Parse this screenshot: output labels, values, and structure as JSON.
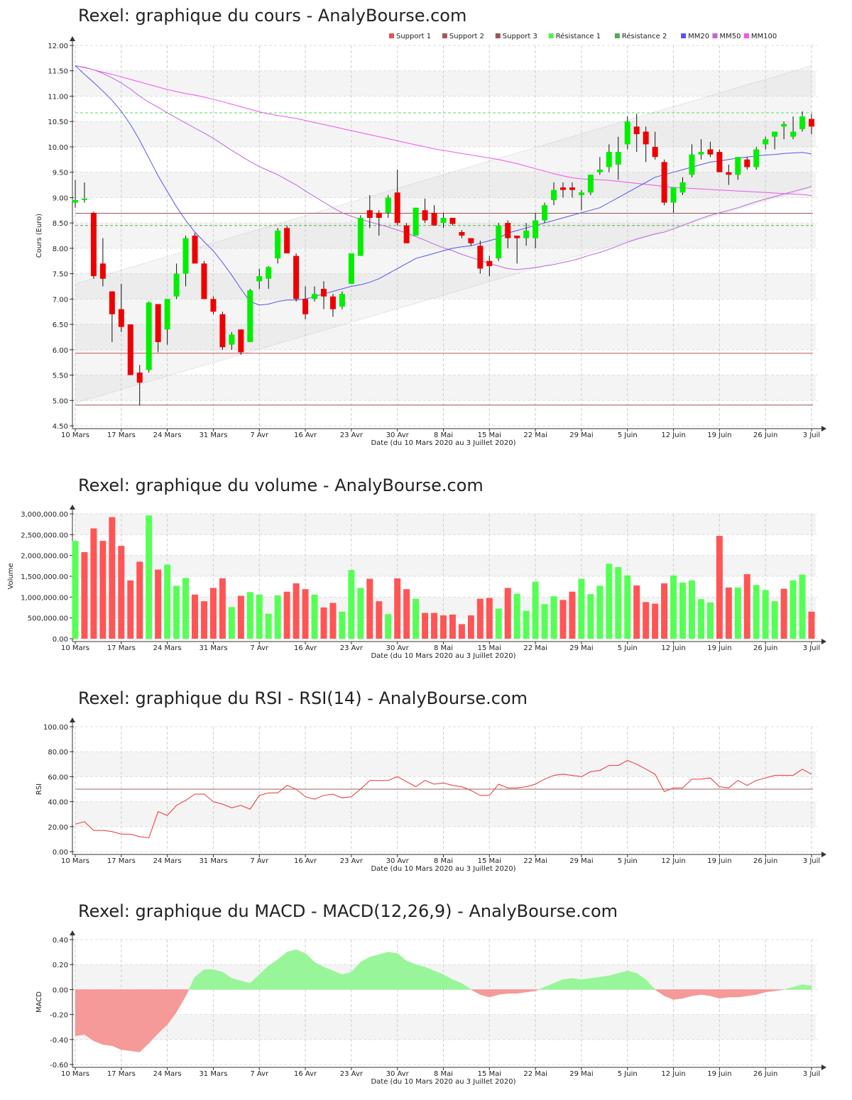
{
  "titles": {
    "price": "Rexel: graphique du cours - AnalyBourse.com",
    "volume": "Rexel: graphique du volume - AnalyBourse.com",
    "rsi": "Rexel: graphique du RSI - RSI(14) - AnalyBourse.com",
    "macd": "Rexel: graphique du MACD - MACD(12,26,9) - AnalyBourse.com"
  },
  "xlabel": "Date (du 10 Mars 2020 au 3 Juillet 2020)",
  "ylabels": {
    "price": "Cours (Euro)",
    "volume": "Volume",
    "rsi": "RSI",
    "macd": "MACD"
  },
  "x_ticks": [
    {
      "label": "10 Mars",
      "i": 0
    },
    {
      "label": "17 Mars",
      "i": 5
    },
    {
      "label": "24 Mars",
      "i": 10
    },
    {
      "label": "31 Mars",
      "i": 15
    },
    {
      "label": "7 Avr",
      "i": 20
    },
    {
      "label": "16 Avr",
      "i": 25
    },
    {
      "label": "23 Avr",
      "i": 30
    },
    {
      "label": "30 Avr",
      "i": 35
    },
    {
      "label": "8 Mai",
      "i": 40
    },
    {
      "label": "15 Mai",
      "i": 45
    },
    {
      "label": "22 Mai",
      "i": 50
    },
    {
      "label": "29 Mai",
      "i": 55
    },
    {
      "label": "5 Juin",
      "i": 60
    },
    {
      "label": "12 Juin",
      "i": 65
    },
    {
      "label": "19 Juin",
      "i": 70
    },
    {
      "label": "26 Juin",
      "i": 75
    },
    {
      "label": "3 Juil",
      "i": 80
    }
  ],
  "colors": {
    "up": "#00ee00",
    "down": "#ee0000",
    "vol_up": "#55ff55",
    "vol_down": "#ff5555",
    "support1": "#cc5555",
    "support2": "#995555",
    "support3": "#995555",
    "resistance1": "#55dd55",
    "resistance2": "#55aa55",
    "mm20": "#5555ee",
    "mm50": "#bb66dd",
    "mm100": "#ee55ee",
    "rsi": "#ee3333",
    "macd_pos": "#99f599",
    "macd_neg": "#f59999"
  },
  "legend": [
    {
      "name": "Support 1",
      "color": "#dd5555"
    },
    {
      "name": "Support 2",
      "color": "#aa5555"
    },
    {
      "name": "Support 3",
      "color": "#995555"
    },
    {
      "name": "Résistance 1",
      "color": "#55ee55"
    },
    {
      "name": "Résistance 2",
      "color": "#55aa55"
    },
    {
      "name": "MM20",
      "color": "#5555ee"
    },
    {
      "name": "MM50",
      "color": "#bb66dd"
    },
    {
      "name": "MM100",
      "color": "#ee55ee"
    }
  ],
  "chart_data": [
    {
      "type": "candlestick",
      "title": "Rexel: graphique du cours - AnalyBourse.com",
      "xlabel": "Date (du 10 Mars 2020 au 3 Juillet 2020)",
      "ylabel": "Cours (Euro)",
      "ylim": [
        4.5,
        12.0
      ],
      "y_ticks": [
        4.5,
        5.0,
        5.5,
        6.0,
        6.5,
        7.0,
        7.5,
        8.0,
        8.5,
        9.0,
        9.5,
        10.0,
        10.5,
        11.0,
        11.5,
        12.0
      ],
      "grid": true,
      "legend_position": "top-right",
      "levels": {
        "support1": 5.93,
        "support2": 8.69,
        "support3": 4.91,
        "resistance1": 10.67,
        "resistance2": 8.45
      },
      "channel": {
        "upper": [
          7.3,
          11.6
        ],
        "lower": [
          4.95,
          9.2
        ]
      },
      "ohlc": [
        [
          8.9,
          9.35,
          8.8,
          8.95
        ],
        [
          8.95,
          9.3,
          8.9,
          8.98
        ],
        [
          8.7,
          8.72,
          7.4,
          7.45
        ],
        [
          7.7,
          8.2,
          7.25,
          7.4
        ],
        [
          7.15,
          7.15,
          6.15,
          6.7
        ],
        [
          6.8,
          7.3,
          6.35,
          6.45
        ],
        [
          6.5,
          6.5,
          5.5,
          5.5
        ],
        [
          5.55,
          5.7,
          4.9,
          5.35
        ],
        [
          5.6,
          6.95,
          5.55,
          6.93
        ],
        [
          6.9,
          6.9,
          5.95,
          6.15
        ],
        [
          6.4,
          7.0,
          6.1,
          7.0
        ],
        [
          7.05,
          7.7,
          7.0,
          7.5
        ],
        [
          7.5,
          8.25,
          7.25,
          8.2
        ],
        [
          8.25,
          8.3,
          7.7,
          7.7
        ],
        [
          7.7,
          7.75,
          7.0,
          7.0
        ],
        [
          7.0,
          7.05,
          6.7,
          6.75
        ],
        [
          6.7,
          6.75,
          6.0,
          6.05
        ],
        [
          6.1,
          6.35,
          6.0,
          6.3
        ],
        [
          6.4,
          6.4,
          5.9,
          5.95
        ],
        [
          6.15,
          7.2,
          6.15,
          7.17
        ],
        [
          7.35,
          7.6,
          7.2,
          7.45
        ],
        [
          7.4,
          7.65,
          7.2,
          7.63
        ],
        [
          7.8,
          8.4,
          7.7,
          8.35
        ],
        [
          8.4,
          8.45,
          7.9,
          7.9
        ],
        [
          7.85,
          7.9,
          6.95,
          7.0
        ],
        [
          7.0,
          7.25,
          6.6,
          6.7
        ],
        [
          7.0,
          7.25,
          6.95,
          7.1
        ],
        [
          7.2,
          7.35,
          6.8,
          7.05
        ],
        [
          7.05,
          7.1,
          6.65,
          6.8
        ],
        [
          6.85,
          7.15,
          6.8,
          7.1
        ],
        [
          7.3,
          7.9,
          7.3,
          7.9
        ],
        [
          7.85,
          8.65,
          7.85,
          8.6
        ],
        [
          8.75,
          9.05,
          8.4,
          8.6
        ],
        [
          8.7,
          8.75,
          8.25,
          8.6
        ],
        [
          8.7,
          9.05,
          8.6,
          9.0
        ],
        [
          9.1,
          9.55,
          8.45,
          8.5
        ],
        [
          8.45,
          8.5,
          8.1,
          8.1
        ],
        [
          8.25,
          8.8,
          8.25,
          8.8
        ],
        [
          8.75,
          8.98,
          8.5,
          8.55
        ],
        [
          8.7,
          8.85,
          8.45,
          8.45
        ],
        [
          8.5,
          8.7,
          8.4,
          8.6
        ],
        [
          8.6,
          8.6,
          8.45,
          8.48
        ],
        [
          8.32,
          8.36,
          8.2,
          8.25
        ],
        [
          8.2,
          8.2,
          8.05,
          8.1
        ],
        [
          8.05,
          8.15,
          7.5,
          7.6
        ],
        [
          7.75,
          7.85,
          7.45,
          7.65
        ],
        [
          7.8,
          8.5,
          7.75,
          8.45
        ],
        [
          8.5,
          8.55,
          8.0,
          8.2
        ],
        [
          8.25,
          8.25,
          7.7,
          8.2
        ],
        [
          8.2,
          8.5,
          8.05,
          8.35
        ],
        [
          8.2,
          8.7,
          8.0,
          8.55
        ],
        [
          8.55,
          8.9,
          8.5,
          8.85
        ],
        [
          8.95,
          9.3,
          8.85,
          9.15
        ],
        [
          9.2,
          9.3,
          9.0,
          9.15
        ],
        [
          9.2,
          9.3,
          9.0,
          9.15
        ],
        [
          9.05,
          9.15,
          8.75,
          9.1
        ],
        [
          9.1,
          9.45,
          9.05,
          9.45
        ],
        [
          9.5,
          9.8,
          9.45,
          9.55
        ],
        [
          9.6,
          10.05,
          9.5,
          9.9
        ],
        [
          9.65,
          10.2,
          9.35,
          9.9
        ],
        [
          10.05,
          10.6,
          9.95,
          10.5
        ],
        [
          10.4,
          10.65,
          9.9,
          10.25
        ],
        [
          10.3,
          10.4,
          9.7,
          10.05
        ],
        [
          10.0,
          10.3,
          9.75,
          9.8
        ],
        [
          9.7,
          9.75,
          8.85,
          8.9
        ],
        [
          8.9,
          9.2,
          8.7,
          9.2
        ],
        [
          9.1,
          9.4,
          9.05,
          9.3
        ],
        [
          9.45,
          10.05,
          9.4,
          9.85
        ],
        [
          9.85,
          10.15,
          9.75,
          9.9
        ],
        [
          9.95,
          10.1,
          9.8,
          9.85
        ],
        [
          9.9,
          9.95,
          9.55,
          9.5
        ],
        [
          9.5,
          9.65,
          9.25,
          9.45
        ],
        [
          9.45,
          9.8,
          9.35,
          9.8
        ],
        [
          9.75,
          9.8,
          9.55,
          9.6
        ],
        [
          9.6,
          10.0,
          9.55,
          9.95
        ],
        [
          10.05,
          10.2,
          9.95,
          10.15
        ],
        [
          10.2,
          10.3,
          9.95,
          10.3
        ],
        [
          10.4,
          10.5,
          10.15,
          10.45
        ],
        [
          10.2,
          10.6,
          10.15,
          10.3
        ],
        [
          10.35,
          10.7,
          10.3,
          10.6
        ],
        [
          10.55,
          10.65,
          10.25,
          10.4
        ]
      ],
      "mm20": [
        11.6,
        11.43,
        11.27,
        11.1,
        10.92,
        10.7,
        10.44,
        10.13,
        9.78,
        9.43,
        9.12,
        8.82,
        8.55,
        8.32,
        8.13,
        7.95,
        7.72,
        7.47,
        7.2,
        6.95,
        6.88,
        6.9,
        6.95,
        6.98,
        6.98,
        7.0,
        7.05,
        7.1,
        7.15,
        7.2,
        7.25,
        7.28,
        7.33,
        7.4,
        7.5,
        7.6,
        7.7,
        7.8,
        7.85,
        7.9,
        7.95,
        8.0,
        8.03,
        8.05,
        8.1,
        8.15,
        8.2,
        8.3,
        8.35,
        8.4,
        8.45,
        8.5,
        8.55,
        8.6,
        8.65,
        8.7,
        8.75,
        8.8,
        8.9,
        9.0,
        9.1,
        9.2,
        9.3,
        9.4,
        9.45,
        9.5,
        9.55,
        9.6,
        9.65,
        9.7,
        9.72,
        9.75,
        9.78,
        9.8,
        9.82,
        9.84,
        9.85,
        9.87,
        9.88,
        9.89,
        9.86
      ],
      "mm50": [
        11.6,
        11.57,
        11.52,
        11.45,
        11.36,
        11.26,
        11.14,
        11.0,
        10.88,
        10.78,
        10.67,
        10.57,
        10.47,
        10.37,
        10.27,
        10.17,
        10.05,
        9.93,
        9.82,
        9.71,
        9.61,
        9.53,
        9.45,
        9.35,
        9.25,
        9.13,
        9.02,
        8.91,
        8.8,
        8.7,
        8.63,
        8.57,
        8.52,
        8.47,
        8.42,
        8.36,
        8.3,
        8.23,
        8.16,
        8.08,
        8.01,
        7.95,
        7.88,
        7.82,
        7.76,
        7.7,
        7.65,
        7.6,
        7.58,
        7.6,
        7.62,
        7.65,
        7.68,
        7.72,
        7.76,
        7.81,
        7.87,
        7.92,
        7.98,
        8.05,
        8.12,
        8.18,
        8.23,
        8.28,
        8.32,
        8.38,
        8.45,
        8.52,
        8.59,
        8.65,
        8.7,
        8.75,
        8.8,
        8.86,
        8.92,
        8.97,
        9.02,
        9.07,
        9.12,
        9.17,
        9.22
      ],
      "mm100": [
        11.6,
        11.56,
        11.52,
        11.47,
        11.43,
        11.38,
        11.33,
        11.28,
        11.23,
        11.18,
        11.13,
        11.09,
        11.05,
        11.02,
        10.98,
        10.94,
        10.89,
        10.84,
        10.79,
        10.74,
        10.69,
        10.65,
        10.62,
        10.59,
        10.56,
        10.52,
        10.48,
        10.44,
        10.4,
        10.36,
        10.32,
        10.28,
        10.24,
        10.2,
        10.16,
        10.12,
        10.08,
        10.04,
        10.0,
        9.96,
        9.93,
        9.9,
        9.87,
        9.84,
        9.81,
        9.78,
        9.75,
        9.71,
        9.67,
        9.62,
        9.57,
        9.52,
        9.47,
        9.43,
        9.39,
        9.37,
        9.36,
        9.35,
        9.34,
        9.32,
        9.3,
        9.28,
        9.26,
        9.24,
        9.22,
        9.2,
        9.19,
        9.18,
        9.17,
        9.16,
        9.15,
        9.14,
        9.13,
        9.12,
        9.11,
        9.1,
        9.09,
        9.08,
        9.07,
        9.06,
        9.04
      ]
    },
    {
      "type": "bar",
      "title": "Rexel: graphique du volume - AnalyBourse.com",
      "xlabel": "Date (du 10 Mars 2020 au 3 Juillet 2020)",
      "ylabel": "Volume",
      "ylim": [
        0,
        3000000
      ],
      "y_ticks": [
        0,
        500000,
        1000000,
        1500000,
        2000000,
        2500000,
        3000000
      ],
      "y_tick_labels": [
        "0.00",
        "500,000.00",
        "1,000,000.00",
        "1,500,000.00",
        "2,000,000.00",
        "2,500,000.00",
        "3,000,000.00"
      ],
      "values": [
        2350000,
        2080000,
        2650000,
        2350000,
        2920000,
        2230000,
        1400000,
        1850000,
        2960000,
        1660000,
        1780000,
        1270000,
        1460000,
        1060000,
        900000,
        1220000,
        1450000,
        760000,
        1030000,
        1120000,
        1060000,
        600000,
        1040000,
        1130000,
        1330000,
        1190000,
        1060000,
        750000,
        860000,
        650000,
        1650000,
        1220000,
        1440000,
        900000,
        590000,
        1450000,
        1190000,
        960000,
        620000,
        620000,
        560000,
        580000,
        350000,
        560000,
        960000,
        980000,
        720000,
        1220000,
        1080000,
        670000,
        1370000,
        830000,
        1020000,
        930000,
        1130000,
        1440000,
        1070000,
        1270000,
        1800000,
        1720000,
        1520000,
        1280000,
        880000,
        840000,
        1330000,
        1520000,
        1350000,
        1400000,
        950000,
        870000,
        2470000,
        1230000,
        1230000,
        1550000,
        1290000,
        1170000,
        900000,
        1200000,
        1400000,
        1540000,
        650000
      ],
      "up": [
        true,
        false,
        false,
        false,
        false,
        false,
        false,
        false,
        true,
        false,
        true,
        true,
        true,
        false,
        false,
        false,
        false,
        true,
        false,
        true,
        true,
        true,
        true,
        false,
        false,
        false,
        true,
        false,
        false,
        true,
        true,
        true,
        false,
        false,
        true,
        false,
        false,
        true,
        false,
        false,
        false,
        false,
        false,
        false,
        false,
        false,
        true,
        false,
        true,
        true,
        true,
        true,
        true,
        false,
        false,
        true,
        true,
        true,
        true,
        true,
        true,
        false,
        false,
        false,
        false,
        true,
        true,
        true,
        true,
        true,
        false,
        false,
        true,
        false,
        true,
        true,
        true,
        false,
        true,
        true,
        false
      ]
    },
    {
      "type": "line",
      "title": "Rexel: graphique du RSI - RSI(14) - AnalyBourse.com",
      "xlabel": "Date (du 10 Mars 2020 au 3 Juillet 2020)",
      "ylabel": "RSI",
      "ylim": [
        0,
        100
      ],
      "y_ticks": [
        0,
        20,
        40,
        60,
        80,
        100
      ],
      "reference_line": 50,
      "values": [
        22,
        24,
        17,
        17,
        16,
        14,
        14,
        12,
        11,
        32,
        29,
        37,
        41,
        46,
        46,
        40,
        38,
        35,
        37,
        34,
        45,
        47,
        47,
        53,
        50,
        44,
        42,
        45,
        46,
        43,
        44,
        50,
        57,
        57,
        57,
        60,
        56,
        52,
        57,
        54,
        55,
        53,
        52,
        49,
        45,
        45,
        54,
        51,
        51,
        52,
        54,
        58,
        61,
        62,
        61,
        60,
        64,
        65,
        69,
        69,
        73,
        70,
        66,
        62,
        48,
        51,
        51,
        58,
        58,
        59,
        52,
        51,
        57,
        53,
        57,
        59,
        61,
        61,
        61,
        66,
        62
      ]
    },
    {
      "type": "area",
      "title": "Rexel: graphique du MACD - MACD(12,26,9) - AnalyBourse.com",
      "xlabel": "Date (du 10 Mars 2020 au 3 Juillet 2020)",
      "ylabel": "MACD",
      "ylim": [
        -0.6,
        0.4
      ],
      "y_ticks": [
        -0.6,
        -0.4,
        -0.2,
        0.0,
        0.2,
        0.4
      ],
      "values": [
        -0.37,
        -0.36,
        -0.41,
        -0.44,
        -0.45,
        -0.48,
        -0.49,
        -0.5,
        -0.43,
        -0.35,
        -0.28,
        -0.18,
        -0.05,
        0.1,
        0.16,
        0.16,
        0.14,
        0.09,
        0.07,
        0.05,
        0.12,
        0.19,
        0.24,
        0.3,
        0.32,
        0.29,
        0.22,
        0.18,
        0.15,
        0.12,
        0.14,
        0.22,
        0.26,
        0.28,
        0.3,
        0.29,
        0.23,
        0.2,
        0.18,
        0.15,
        0.12,
        0.08,
        0.05,
        0.0,
        -0.04,
        -0.06,
        -0.04,
        -0.03,
        -0.03,
        -0.02,
        -0.01,
        0.02,
        0.05,
        0.08,
        0.09,
        0.08,
        0.09,
        0.1,
        0.11,
        0.13,
        0.15,
        0.13,
        0.08,
        0.0,
        -0.05,
        -0.08,
        -0.07,
        -0.05,
        -0.04,
        -0.05,
        -0.07,
        -0.06,
        -0.06,
        -0.05,
        -0.04,
        -0.02,
        -0.01,
        0.0,
        0.02,
        0.04,
        0.03
      ]
    }
  ]
}
